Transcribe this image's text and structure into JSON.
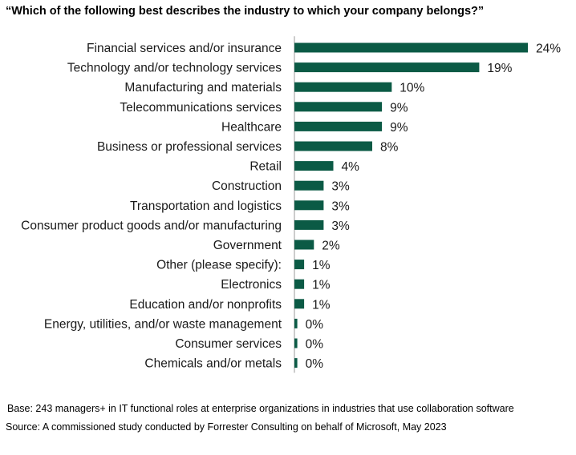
{
  "chart_data": {
    "type": "bar",
    "orientation": "horizontal",
    "title": "“Which of the following best describes the industry to which your company belongs?”",
    "categories": [
      "Financial services and/or insurance",
      "Technology and/or technology services",
      "Manufacturing and materials",
      "Telecommunications services",
      "Healthcare",
      "Business or professional services",
      "Retail",
      "Construction",
      "Transportation and logistics",
      "Consumer product goods and/or manufacturing",
      "Government",
      "Other (please specify):",
      "Electronics",
      "Education and/or nonprofits",
      "Energy, utilities, and/or waste management",
      "Consumer services",
      "Chemicals and/or metals"
    ],
    "values": [
      24,
      19,
      10,
      9,
      9,
      8,
      4,
      3,
      3,
      3,
      2,
      1,
      1,
      1,
      0.3,
      0.3,
      0.3
    ],
    "value_labels": [
      "24%",
      "19%",
      "10%",
      "9%",
      "9%",
      "8%",
      "4%",
      "3%",
      "3%",
      "3%",
      "2%",
      "1%",
      "1%",
      "1%",
      "0%",
      "0%",
      "0%"
    ],
    "xlim": [
      0,
      24
    ],
    "xlabel": "",
    "ylabel": "",
    "grid": false,
    "legend": "none",
    "bar_color": "#0b5a45",
    "axis_color": "#999999"
  },
  "footnotes": {
    "base": "Base: 243 managers+ in IT functional roles at enterprise organizations in industries that use collaboration software",
    "source": "Source: A commissioned study conducted by Forrester Consulting on behalf of Microsoft, May 2023"
  }
}
